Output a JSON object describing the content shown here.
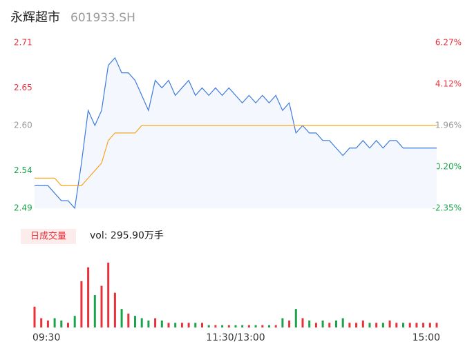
{
  "chart_data": {
    "type": "line",
    "title": "永辉超市",
    "subtitle": "601933.SH",
    "x": [
      0,
      4,
      8,
      12,
      16,
      20,
      24,
      28,
      32,
      36,
      40,
      44,
      48,
      52,
      56,
      60,
      64,
      68,
      72,
      76,
      80,
      84,
      88,
      92,
      96,
      100,
      104,
      108,
      112,
      116,
      120,
      124,
      128,
      132,
      136,
      140,
      144,
      148,
      152,
      156,
      160,
      164,
      168,
      172,
      176,
      180,
      184,
      188,
      192,
      196,
      200,
      204,
      208,
      212,
      216,
      220,
      224,
      228,
      232,
      236,
      240
    ],
    "xlim": [
      0,
      240
    ],
    "xticks": [
      {
        "value": 0,
        "label": "09:30"
      },
      {
        "value": 120,
        "label": "11:30/13:00"
      },
      {
        "value": 240,
        "label": "15:00"
      }
    ],
    "ylim": [
      2.49,
      2.71
    ],
    "yticks": [
      2.71,
      2.65,
      {
        "value": 2.6,
        "label": "2.60"
      },
      2.54,
      2.49
    ],
    "ytick_colors": [
      "#e8303a",
      "#e8303a",
      "#999999",
      "#1aa34a",
      "#1aa34a"
    ],
    "y2lim": [
      -2.35,
      6.27
    ],
    "y2ticks": [
      {
        "value": 6.27,
        "label": "6.27%"
      },
      {
        "value": 4.12,
        "label": "4.12%"
      },
      {
        "value": 1.96,
        "label": "1.96%"
      },
      {
        "value": -0.2,
        "label": "-0.20%"
      },
      {
        "value": -2.35,
        "label": "-2.35%"
      }
    ],
    "y2tick_colors": [
      "#e8303a",
      "#e8303a",
      "#999999",
      "#1aa34a",
      "#1aa34a"
    ],
    "series": [
      {
        "color": "#3b7be0",
        "area_color": "#f4f7fd",
        "values": [
          2.52,
          2.52,
          2.52,
          2.51,
          2.5,
          2.5,
          2.49,
          2.55,
          2.62,
          2.6,
          2.62,
          2.68,
          2.69,
          2.67,
          2.67,
          2.66,
          2.64,
          2.62,
          2.66,
          2.65,
          2.66,
          2.64,
          2.65,
          2.66,
          2.64,
          2.65,
          2.64,
          2.65,
          2.64,
          2.65,
          2.64,
          2.63,
          2.64,
          2.63,
          2.64,
          2.63,
          2.64,
          2.62,
          2.63,
          2.59,
          2.6,
          2.59,
          2.59,
          2.58,
          2.58,
          2.57,
          2.56,
          2.57,
          2.57,
          2.58,
          2.57,
          2.58,
          2.57,
          2.58,
          2.58,
          2.57,
          2.57,
          2.57,
          2.57,
          2.57,
          2.57
        ]
      },
      {
        "color": "#f5a623",
        "values": [
          2.53,
          2.53,
          2.53,
          2.53,
          2.52,
          2.52,
          2.52,
          2.52,
          2.53,
          2.54,
          2.55,
          2.58,
          2.59,
          2.59,
          2.59,
          2.59,
          2.6,
          2.6,
          2.6,
          2.6,
          2.6,
          2.6,
          2.6,
          2.6,
          2.6,
          2.6,
          2.6,
          2.6,
          2.6,
          2.6,
          2.6,
          2.6,
          2.6,
          2.6,
          2.6,
          2.6,
          2.6,
          2.6,
          2.6,
          2.6,
          2.6,
          2.6,
          2.6,
          2.6,
          2.6,
          2.6,
          2.6,
          2.6,
          2.6,
          2.6,
          2.6,
          2.6,
          2.6,
          2.6,
          2.6,
          2.6,
          2.6,
          2.6,
          2.6,
          2.6,
          2.6
        ]
      }
    ],
    "volume": {
      "label": "日成交量",
      "total_label": "vol: 295.90万手",
      "up_color": "#e8303a",
      "down_color": "#1aa34a",
      "values": [
        9,
        4,
        3,
        4,
        3,
        2,
        5,
        20,
        26,
        14,
        18,
        28,
        15,
        8,
        6,
        5,
        4,
        3,
        4,
        3,
        2,
        2,
        2,
        2,
        2,
        2,
        1,
        1,
        1,
        1,
        1,
        1,
        1,
        1,
        1,
        1,
        1,
        4,
        3,
        8,
        4,
        3,
        2,
        3,
        2,
        3,
        4,
        2,
        2,
        3,
        2,
        2,
        2,
        3,
        2,
        2,
        2,
        2,
        2,
        2,
        2
      ]
    }
  }
}
